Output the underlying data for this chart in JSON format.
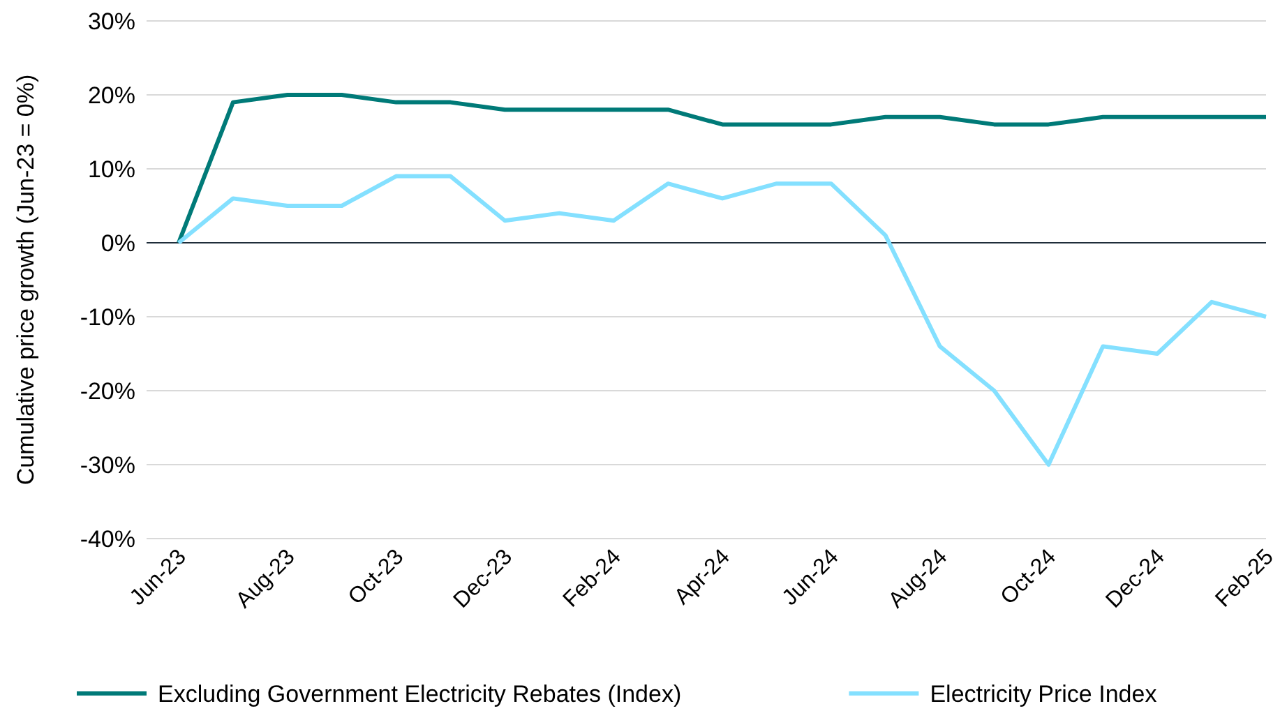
{
  "chart_data": {
    "type": "line",
    "ylabel": "Cumulative price growth (Jun-23 = 0%)",
    "categories": [
      "Jun-23",
      null,
      "Aug-23",
      null,
      "Oct-23",
      null,
      "Dec-23",
      null,
      "Feb-24",
      null,
      "Apr-24",
      null,
      "Jun-24",
      null,
      "Aug-24",
      null,
      "Oct-24",
      null,
      "Dec-24",
      null,
      "Feb-25"
    ],
    "series": [
      {
        "name": "Excluding Government Electricity Rebates (Index)",
        "color": "#007a78",
        "values": [
          0,
          19,
          20,
          20,
          19,
          19,
          18,
          18,
          18,
          18,
          16,
          16,
          16,
          17,
          17,
          16,
          16,
          17,
          17,
          17,
          17
        ]
      },
      {
        "name": "Electricity Price Index",
        "color": "#84e0ff",
        "values": [
          0,
          6,
          5,
          5,
          9,
          9,
          3,
          4,
          3,
          8,
          6,
          8,
          8,
          1,
          -14,
          -20,
          -30,
          -14,
          -15,
          -8,
          -10
        ]
      }
    ],
    "ylim": [
      -40,
      30
    ],
    "yticks": [
      {
        "value": -40,
        "label": "-40%"
      },
      {
        "value": -30,
        "label": "-30%"
      },
      {
        "value": -20,
        "label": "-20%"
      },
      {
        "value": -10,
        "label": "-10%"
      },
      {
        "value": 0,
        "label": "0%"
      },
      {
        "value": 10,
        "label": "10%"
      },
      {
        "value": 20,
        "label": "20%"
      },
      {
        "value": 30,
        "label": "30%"
      }
    ],
    "grid": "y",
    "legend": "bottom",
    "marker": "none",
    "line_style": "solid"
  }
}
